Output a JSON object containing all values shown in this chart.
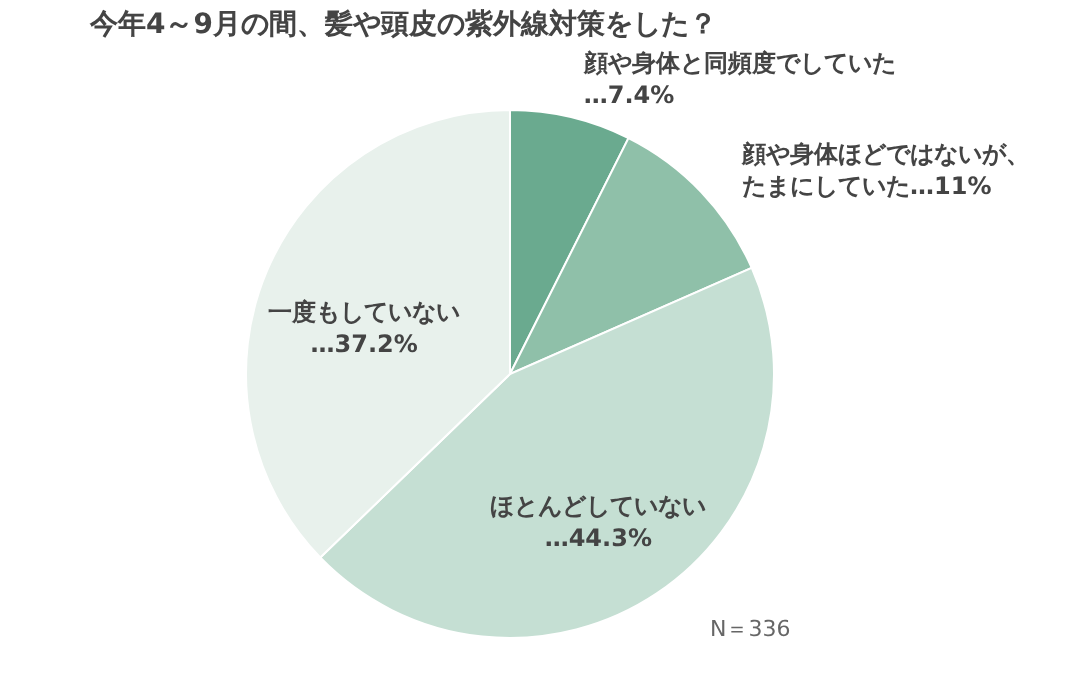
{
  "chart_data": {
    "type": "pie",
    "title": "今年4～9月の間、髪や頭皮の紫外線対策をした？",
    "categories": [
      "顔や身体と同頻度でしていた",
      "顔や身体ほどではないが、たまにしていた",
      "ほとんどしていない",
      "一度もしていない"
    ],
    "values": [
      7.4,
      11,
      44.3,
      37.2
    ],
    "value_labels": [
      "…7.4%",
      "…11%",
      "…44.3%",
      "…37.2%"
    ],
    "colors": [
      "#6aaa8f",
      "#8fc0a9",
      "#c5dfd3",
      "#e8f1ec"
    ],
    "annotations": [
      "N＝336"
    ]
  }
}
